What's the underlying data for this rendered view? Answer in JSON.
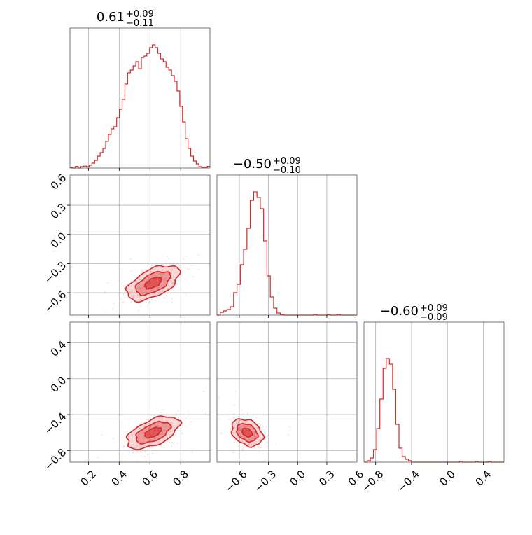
{
  "chart_data": {
    "type": "corner",
    "color": "#d62728",
    "grid": true,
    "parameters": [
      {
        "title": {
          "median": "0.61",
          "plus": "+0.09",
          "minus": "−0.11"
        },
        "range": [
          0.08,
          0.99
        ],
        "ticks": [
          0.2,
          0.4,
          0.6,
          0.8
        ],
        "tick_labels": [
          "0.2",
          "0.4",
          "0.6",
          "0.8"
        ],
        "histogram": [
          0.005,
          0.0,
          0.012,
          0.0,
          0.01,
          0.014,
          0.01,
          0.02,
          0.035,
          0.055,
          0.085,
          0.11,
          0.14,
          0.19,
          0.24,
          0.28,
          0.295,
          0.36,
          0.42,
          0.49,
          0.6,
          0.68,
          0.7,
          0.73,
          0.76,
          0.71,
          0.79,
          0.8,
          0.82,
          0.86,
          0.88,
          0.86,
          0.82,
          0.78,
          0.76,
          0.72,
          0.7,
          0.66,
          0.62,
          0.55,
          0.44,
          0.33,
          0.21,
          0.14,
          0.085,
          0.05,
          0.03,
          0.01,
          0.005,
          0.005,
          0.012
        ]
      },
      {
        "title": {
          "median": "−0.50",
          "plus": "+0.09",
          "minus": "−0.10"
        },
        "range": [
          -0.83,
          0.61
        ],
        "ticks": [
          -0.6,
          -0.3,
          0.0,
          0.3,
          0.6
        ],
        "tick_labels": [
          "−0.6",
          "−0.3",
          "0.0",
          "0.3",
          "0.6"
        ],
        "histogram": [
          0.0,
          0.02,
          0.03,
          0.04,
          0.06,
          0.16,
          0.22,
          0.36,
          0.47,
          0.62,
          0.82,
          0.88,
          0.84,
          0.76,
          0.53,
          0.28,
          0.13,
          0.05,
          0.015,
          0.005,
          0.0,
          0.0,
          0.0,
          0.0,
          0.0,
          0.0,
          0.0,
          0.0,
          0.0,
          0.004,
          0.0,
          0.0,
          0.0,
          0.004,
          0.0,
          0.0,
          0.004,
          0.0,
          0.0,
          0.0,
          0.0,
          0.0
        ]
      },
      {
        "title": {
          "median": "−0.60",
          "plus": "+0.09",
          "minus": "−0.09"
        },
        "range": [
          -0.93,
          0.63
        ],
        "ticks": [
          -0.8,
          -0.4,
          0.0,
          0.4
        ],
        "tick_labels": [
          "−0.8",
          "−0.4",
          "0.0",
          "0.4"
        ],
        "histogram": [
          0.0,
          0.01,
          0.03,
          0.09,
          0.24,
          0.45,
          0.67,
          0.74,
          0.7,
          0.52,
          0.27,
          0.1,
          0.04,
          0.02,
          0.01,
          0.0,
          0.0,
          0.0,
          0.0,
          0.0,
          0.0,
          0.0,
          0.0,
          0.0,
          0.0,
          0.0,
          0.0,
          0.0,
          0.0,
          0.0,
          0.006,
          0.0,
          0.0,
          0.0,
          0.0,
          0.004,
          0.0,
          0.0,
          0.0,
          0.004,
          0.0,
          0.0,
          0.0,
          0.0
        ]
      }
    ],
    "pairs": [
      {
        "x": 0,
        "y": 1,
        "center": [
          0.62,
          -0.5
        ],
        "sigma": [
          0.09,
          0.095
        ],
        "rho": 0.55,
        "scatter_count": 320
      },
      {
        "x": 0,
        "y": 2,
        "center": [
          0.62,
          -0.6
        ],
        "sigma": [
          0.09,
          0.095
        ],
        "rho": 0.55,
        "scatter_count": 320
      },
      {
        "x": 1,
        "y": 2,
        "center": [
          -0.52,
          -0.6
        ],
        "sigma": [
          0.085,
          0.08
        ],
        "rho": -0.3,
        "scatter_count": 260
      }
    ],
    "contour_levels_sigma": [
      0.6,
      1.25,
      1.9
    ]
  }
}
